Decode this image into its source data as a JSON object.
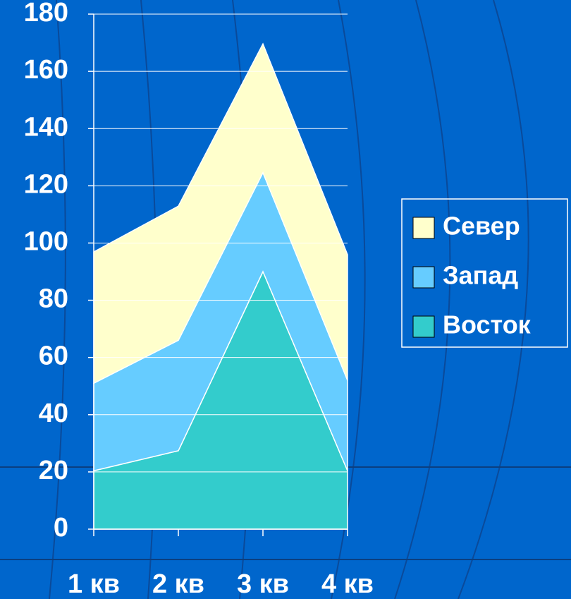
{
  "chart_data": {
    "type": "stacked_area",
    "categories": [
      "1 кв",
      "2 кв",
      "3 кв",
      "4 кв"
    ],
    "series": [
      {
        "name": "Восток",
        "color": "#33cccc",
        "values": [
          20.4,
          27.4,
          90,
          20.4
        ]
      },
      {
        "name": "Запад",
        "color": "#66ccff",
        "values": [
          30.6,
          38.6,
          34.6,
          31.6
        ]
      },
      {
        "name": "Север",
        "color": "#ffffcc",
        "values": [
          45.9,
          46.9,
          45,
          43.9
        ]
      }
    ],
    "ylim": [
      0,
      180
    ],
    "yticks": [
      0,
      20,
      40,
      60,
      80,
      100,
      120,
      140,
      160,
      180
    ],
    "grid": true,
    "legend": "right"
  }
}
